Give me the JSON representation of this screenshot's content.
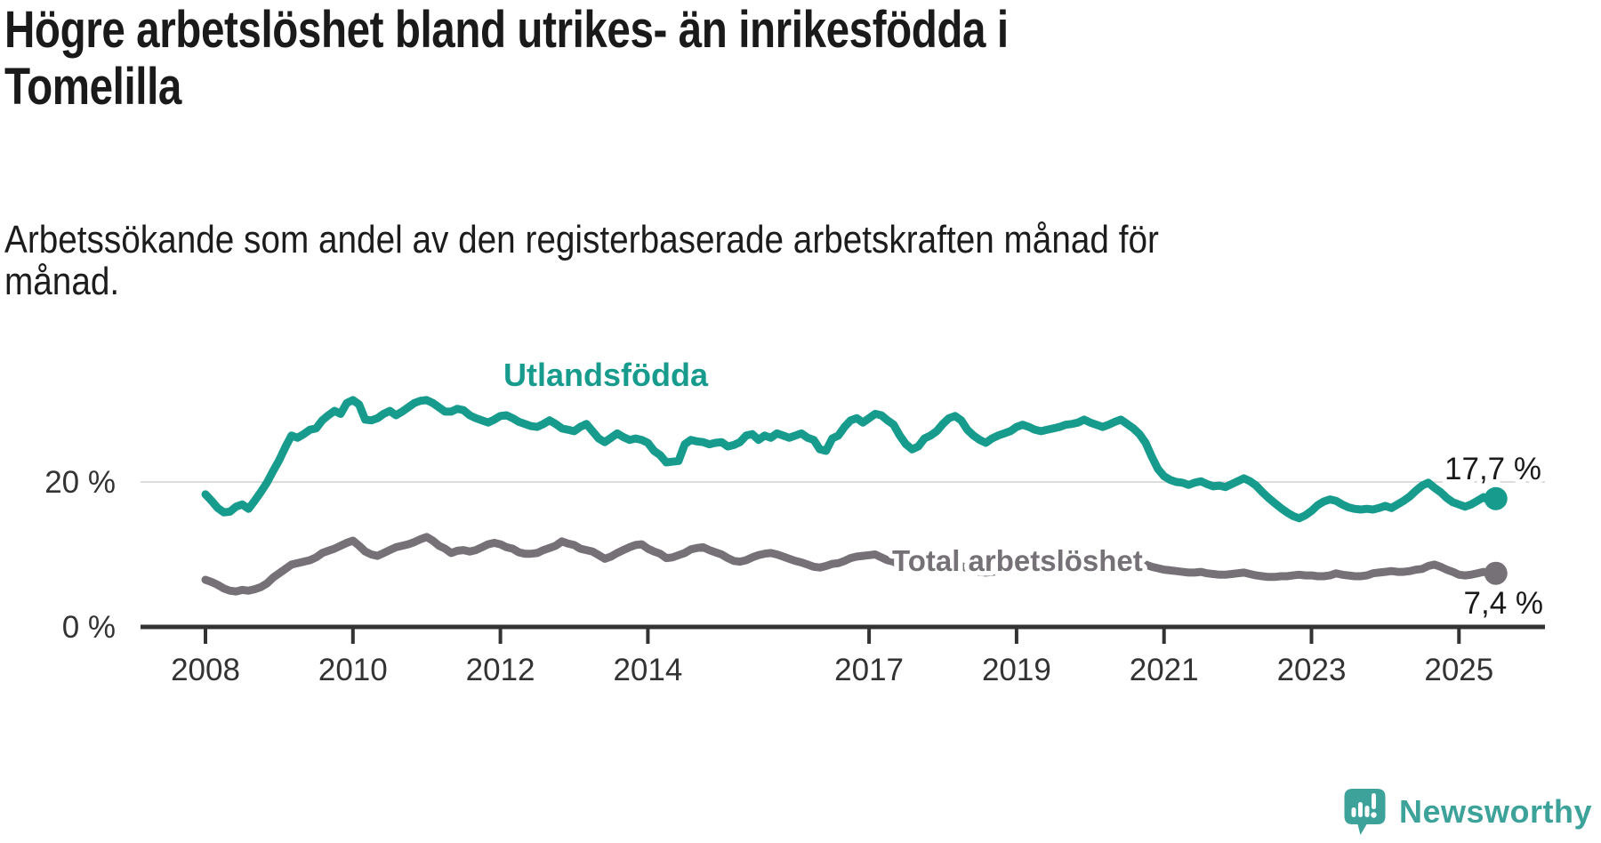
{
  "title": {
    "line1": "Högre arbetslöshet bland utrikes- än inrikesfödda i",
    "line2": "Tomelilla"
  },
  "subtitle": {
    "line1": "Arbetssökande som andel av den registerbaserade arbetskraften månad för",
    "line2": "månad."
  },
  "branding": {
    "logo_text": "Newsworthy",
    "logo_color": "#3da39a"
  },
  "chart_data": {
    "type": "line",
    "title": "Högre arbetslöshet bland utrikes- än inrikesfödda i Tomelilla",
    "subtitle": "Arbetssökande som andel av den registerbaserade arbetskraften månad för månad.",
    "x_unit": "month",
    "x_start": "2008-01",
    "x_end": "2025-07",
    "base_year": 2008,
    "ylim": [
      0,
      35
    ],
    "grid": "single-line-at-20",
    "gridline_values": [
      20
    ],
    "legend_position": "inline-labels",
    "x_ticks": [
      "2008",
      "2010",
      "2012",
      "2014",
      "2017",
      "2019",
      "2021",
      "2023",
      "2025"
    ],
    "y_ticks": [
      {
        "label": "20 %",
        "value": 20
      },
      {
        "label": "0 %",
        "value": 0
      }
    ],
    "colors": {
      "axis": "#333333",
      "gridline": "#dcdcdc",
      "tick_label": "#333333",
      "value_label": "#1a1a1a"
    },
    "series": [
      {
        "name": "Utlandsfödda",
        "color": "#169b8d",
        "end_label": "17,7 %",
        "end_value": 17.7,
        "values": [
          18.3,
          17.4,
          16.4,
          15.8,
          15.9,
          16.6,
          16.9,
          16.3,
          17.4,
          18.6,
          19.9,
          21.5,
          23.0,
          24.8,
          26.4,
          26.1,
          26.6,
          27.2,
          27.4,
          28.5,
          29.2,
          29.8,
          29.4,
          30.9,
          31.3,
          30.7,
          28.6,
          28.5,
          28.8,
          29.4,
          29.8,
          29.2,
          29.7,
          30.3,
          30.9,
          31.2,
          31.3,
          30.9,
          30.3,
          29.7,
          29.7,
          30.1,
          29.9,
          29.2,
          28.8,
          28.5,
          28.2,
          28.6,
          29.1,
          29.2,
          28.8,
          28.3,
          28.0,
          27.7,
          27.6,
          28.0,
          28.5,
          28.0,
          27.4,
          27.2,
          27.0,
          27.6,
          28.0,
          27.0,
          26.0,
          25.5,
          26.1,
          26.7,
          26.2,
          25.8,
          26.0,
          25.8,
          25.4,
          24.3,
          23.7,
          22.7,
          22.8,
          22.9,
          25.2,
          25.8,
          25.6,
          25.5,
          25.2,
          25.4,
          25.5,
          24.9,
          25.1,
          25.5,
          26.4,
          26.6,
          25.8,
          26.4,
          26.1,
          26.7,
          26.4,
          26.1,
          26.4,
          26.7,
          26.1,
          25.8,
          24.5,
          24.3,
          26.0,
          26.4,
          27.6,
          28.5,
          28.8,
          28.2,
          28.8,
          29.4,
          29.2,
          28.5,
          27.9,
          26.4,
          25.2,
          24.5,
          24.9,
          26.0,
          26.4,
          27.0,
          28.0,
          28.8,
          29.1,
          28.5,
          27.2,
          26.4,
          25.8,
          25.4,
          26.0,
          26.4,
          26.7,
          27.0,
          27.6,
          27.9,
          27.6,
          27.2,
          27.0,
          27.2,
          27.4,
          27.6,
          27.9,
          28.0,
          28.2,
          28.6,
          28.2,
          27.9,
          27.6,
          27.9,
          28.3,
          28.6,
          28.0,
          27.4,
          26.6,
          25.4,
          23.5,
          21.8,
          20.8,
          20.3,
          20.0,
          19.9,
          19.6,
          19.9,
          20.1,
          19.7,
          19.4,
          19.5,
          19.3,
          19.7,
          20.1,
          20.5,
          20.1,
          19.5,
          18.6,
          17.8,
          17.1,
          16.4,
          15.8,
          15.3,
          15.0,
          15.4,
          16.0,
          16.8,
          17.3,
          17.6,
          17.4,
          16.9,
          16.5,
          16.3,
          16.2,
          16.3,
          16.2,
          16.4,
          16.7,
          16.4,
          16.9,
          17.4,
          18.0,
          18.8,
          19.5,
          19.9,
          19.2,
          18.6,
          17.8,
          17.2,
          16.9,
          16.6,
          16.9,
          17.4,
          17.9,
          17.4,
          17.7
        ]
      },
      {
        "name": "Total arbetslöshet",
        "color": "#767077",
        "end_label": "7,4 %",
        "end_value": 7.4,
        "values": [
          6.5,
          6.2,
          5.8,
          5.3,
          5.0,
          4.9,
          5.1,
          5.0,
          5.2,
          5.5,
          6.0,
          6.8,
          7.4,
          8.0,
          8.6,
          8.8,
          9.0,
          9.2,
          9.6,
          10.2,
          10.5,
          10.8,
          11.2,
          11.6,
          11.9,
          11.2,
          10.4,
          10.0,
          9.8,
          10.2,
          10.6,
          11.0,
          11.2,
          11.4,
          11.7,
          12.1,
          12.4,
          11.9,
          11.2,
          10.8,
          10.2,
          10.5,
          10.6,
          10.4,
          10.6,
          11.0,
          11.4,
          11.6,
          11.4,
          11.0,
          10.8,
          10.3,
          10.1,
          10.1,
          10.2,
          10.6,
          10.9,
          11.2,
          11.8,
          11.5,
          11.3,
          10.8,
          10.6,
          10.4,
          9.9,
          9.4,
          9.7,
          10.2,
          10.6,
          11.0,
          11.3,
          11.4,
          10.8,
          10.4,
          10.1,
          9.5,
          9.6,
          9.9,
          10.2,
          10.7,
          10.9,
          11.0,
          10.6,
          10.3,
          10.0,
          9.5,
          9.1,
          9.0,
          9.2,
          9.6,
          9.9,
          10.1,
          10.2,
          10.0,
          9.7,
          9.4,
          9.1,
          8.9,
          8.6,
          8.3,
          8.2,
          8.4,
          8.7,
          8.8,
          9.1,
          9.5,
          9.7,
          9.8,
          9.9,
          10.0,
          9.6,
          9.2,
          9.0,
          8.5,
          8.2,
          8.0,
          8.2,
          8.5,
          8.7,
          8.8,
          8.9,
          9.0,
          8.7,
          8.4,
          8.1,
          7.8,
          7.6,
          7.5,
          7.6,
          7.7,
          7.8,
          7.9,
          8.0,
          8.1,
          8.0,
          7.9,
          7.8,
          7.9,
          8.0,
          8.1,
          8.2,
          8.3,
          8.4,
          8.5,
          8.6,
          8.7,
          8.9,
          9.2,
          9.4,
          9.5,
          9.3,
          9.1,
          8.9,
          8.6,
          8.3,
          8.1,
          7.9,
          7.8,
          7.7,
          7.6,
          7.5,
          7.5,
          7.6,
          7.4,
          7.3,
          7.2,
          7.2,
          7.3,
          7.4,
          7.5,
          7.3,
          7.1,
          7.0,
          6.9,
          6.9,
          7.0,
          7.0,
          7.1,
          7.2,
          7.1,
          7.1,
          7.0,
          7.0,
          7.1,
          7.4,
          7.2,
          7.1,
          7.0,
          7.0,
          7.1,
          7.4,
          7.5,
          7.6,
          7.7,
          7.6,
          7.6,
          7.7,
          7.9,
          8.0,
          8.4,
          8.6,
          8.3,
          7.9,
          7.6,
          7.2,
          7.1,
          7.2,
          7.4,
          7.6,
          7.4,
          7.4
        ]
      }
    ]
  }
}
